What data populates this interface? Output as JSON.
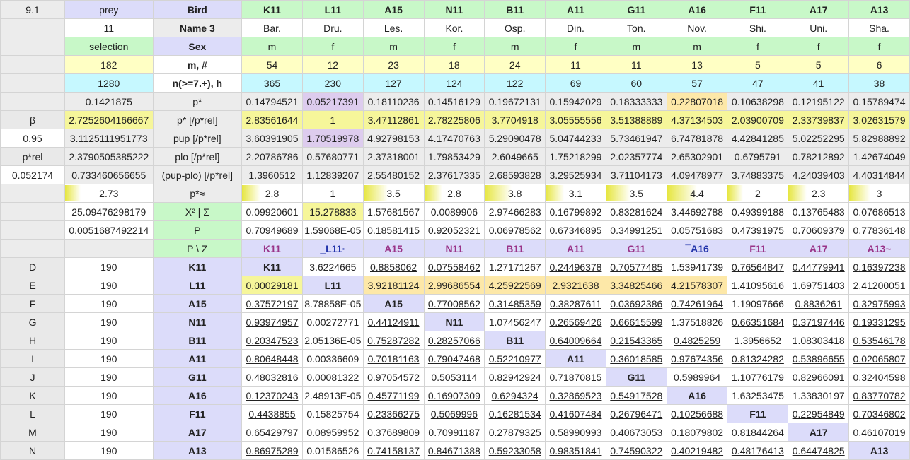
{
  "columns": [
    "K11",
    "L11",
    "A15",
    "N11",
    "B11",
    "A11",
    "G11",
    "A16",
    "F11",
    "A17",
    "A13"
  ],
  "top": {
    "a1": "9.1",
    "prey": "prey",
    "bird_label": "Bird",
    "count11": "11",
    "name3_label": "Name 3",
    "selection": "selection",
    "sex_label": "Sex",
    "m182": "182",
    "m_label": "m, #",
    "n1280": "1280",
    "n_label": "n(>=7.+), h",
    "pstar_val": "0.1421875",
    "pstar_label": "p*",
    "beta_label": "β",
    "beta_val": "2.7252604166667",
    "prel_label": "p* [/p*rel]",
    "conf": "0.95",
    "pup_val": "3.1125111951773",
    "pup_label": "pup [/p*rel]",
    "prel_row_label": "p*rel",
    "plo_val": "2.3790505385222",
    "plo_label": "plo [/p*rel]",
    "prel_value": "0.052174",
    "diff_val": "0.733460656655",
    "diff_label": "(pup-plo) [/p*rel]",
    "approx_val": "2.73",
    "approx_label": "p*≈",
    "chi_val": "25.09476298179",
    "chi_label": "X² | Σ",
    "P_val": "0.0051687492214",
    "P_label": "P",
    "pz_label": "P \\ Z"
  },
  "names": [
    "Bar.",
    "Dru.",
    "Les.",
    "Kor.",
    "Osp.",
    "Din.",
    "Ton.",
    "Nov.",
    "Shi.",
    "Uni.",
    "Sha."
  ],
  "sex": [
    "m",
    "f",
    "m",
    "f",
    "m",
    "f",
    "m",
    "m",
    "f",
    "f",
    "f"
  ],
  "m": [
    "54",
    "12",
    "23",
    "18",
    "24",
    "11",
    "11",
    "13",
    "5",
    "5",
    "6"
  ],
  "n": [
    "365",
    "230",
    "127",
    "124",
    "122",
    "69",
    "60",
    "57",
    "47",
    "41",
    "38"
  ],
  "pstar": [
    "0.14794521",
    "0.05217391",
    "0.18110236",
    "0.14516129",
    "0.19672131",
    "0.15942029",
    "0.18333333",
    "0.22807018",
    "0.10638298",
    "0.12195122",
    "0.15789474"
  ],
  "prel": [
    "2.83561644",
    "1",
    "3.47112861",
    "2.78225806",
    "3.7704918",
    "3.05555556",
    "3.51388889",
    "4.37134503",
    "2.03900709",
    "2.33739837",
    "3.02631579"
  ],
  "pup": [
    "3.60391905",
    "1.70519978",
    "4.92798153",
    "4.17470763",
    "5.29090478",
    "5.04744233",
    "5.73461947",
    "6.74781878",
    "4.42841285",
    "5.02252295",
    "5.82988892"
  ],
  "plo": [
    "2.20786786",
    "0.57680771",
    "2.37318001",
    "1.79853429",
    "2.6049665",
    "1.75218299",
    "2.02357774",
    "2.65302901",
    "0.6795791",
    "0.78212892",
    "1.42674049"
  ],
  "diff": [
    "1.3960512",
    "1.12839207",
    "2.55480152",
    "2.37617335",
    "2.68593828",
    "3.29525934",
    "3.71104173",
    "4.09478977",
    "3.74883375",
    "4.24039403",
    "4.40314844"
  ],
  "approx": [
    "2.8",
    "1",
    "3.5",
    "2.8",
    "3.8",
    "3.1",
    "3.5",
    "4.4",
    "2",
    "2.3",
    "3"
  ],
  "approx_fill": [
    0.3,
    0.0,
    0.4,
    0.3,
    0.45,
    0.3,
    0.4,
    0.5,
    0.25,
    0.3,
    0.35
  ],
  "chi": [
    "0.09920601",
    "15.278833",
    "1.57681567",
    "0.0089906",
    "2.97466283",
    "0.16799892",
    "0.83281624",
    "3.44692788",
    "0.49399188",
    "0.13765483",
    "0.07686513"
  ],
  "P": [
    "0.70949689",
    "1.59068E-05",
    "0.18581415",
    "0.92052321",
    "0.06978562",
    "0.67346895",
    "0.34991251",
    "0.05751683",
    "0.47391975",
    "0.70609379",
    "0.77836148"
  ],
  "pz_heads": [
    "K11",
    "_L11·",
    "A15",
    "N11",
    "B11",
    "A11",
    "G11",
    "¯A16",
    "F11",
    "A17",
    "A13~"
  ],
  "matrix": [
    {
      "row": "D",
      "n": "190",
      "code": "K11",
      "cells": [
        "K11",
        "3.6224665",
        "0.8858062",
        "0.07558462",
        "1.27171267",
        "0.24496378",
        "0.70577485",
        "1.53941739",
        "0.76564847",
        "0.44779941",
        "0.16397238"
      ]
    },
    {
      "row": "E",
      "n": "190",
      "code": "L11",
      "cells": [
        "0.00029181",
        "L11",
        "3.92181124",
        "2.99686554",
        "4.25922569",
        "2.9321638",
        "3.34825466",
        "4.21578307",
        "1.41095616",
        "1.69751403",
        "2.41200051"
      ]
    },
    {
      "row": "F",
      "n": "190",
      "code": "A15",
      "cells": [
        "0.37572197",
        "8.78858E-05",
        "A15",
        "0.77008562",
        "0.31485359",
        "0.38287611",
        "0.03692386",
        "0.74261964",
        "1.19097666",
        "0.8836261",
        "0.32975993"
      ]
    },
    {
      "row": "G",
      "n": "190",
      "code": "N11",
      "cells": [
        "0.93974957",
        "0.00272771",
        "0.44124911",
        "N11",
        "1.07456247",
        "0.26569426",
        "0.66615599",
        "1.37518826",
        "0.66351684",
        "0.37197446",
        "0.19331295"
      ]
    },
    {
      "row": "H",
      "n": "190",
      "code": "B11",
      "cells": [
        "0.20347523",
        "2.05136E-05",
        "0.75287282",
        "0.28257066",
        "B11",
        "0.64009664",
        "0.21543365",
        "0.4825259",
        "1.3956652",
        "1.08303418",
        "0.53546178"
      ]
    },
    {
      "row": "I",
      "n": "190",
      "code": "A11",
      "cells": [
        "0.80648448",
        "0.00336609",
        "0.70181163",
        "0.79047468",
        "0.52210977",
        "A11",
        "0.36018585",
        "0.97674356",
        "0.81324282",
        "0.53896655",
        "0.02065807"
      ]
    },
    {
      "row": "J",
      "n": "190",
      "code": "G11",
      "cells": [
        "0.48032816",
        "0.00081322",
        "0.97054572",
        "0.5053114",
        "0.82942924",
        "0.71870815",
        "G11",
        "0.5989964",
        "1.10776179",
        "0.82966091",
        "0.32404598"
      ]
    },
    {
      "row": "K",
      "n": "190",
      "code": "A16",
      "cells": [
        "0.12370243",
        "2.48913E-05",
        "0.45771199",
        "0.16907309",
        "0.6294324",
        "0.32869523",
        "0.54917528",
        "A16",
        "1.63253475",
        "1.33830197",
        "0.83770782"
      ]
    },
    {
      "row": "L",
      "n": "190",
      "code": "F11",
      "cells": [
        "0.4438855",
        "0.15825754",
        "0.23366275",
        "0.5069996",
        "0.16281534",
        "0.41607484",
        "0.26796471",
        "0.10256688",
        "F11",
        "0.22954849",
        "0.70346802"
      ]
    },
    {
      "row": "M",
      "n": "190",
      "code": "A17",
      "cells": [
        "0.65429797",
        "0.08959952",
        "0.37689809",
        "0.70991187",
        "0.27879325",
        "0.58990993",
        "0.40673053",
        "0.18079802",
        "0.81844264",
        "A17",
        "0.46107019"
      ]
    },
    {
      "row": "N",
      "n": "190",
      "code": "A13",
      "cells": [
        "0.86975289",
        "0.01586526",
        "0.74158137",
        "0.84671388",
        "0.59233058",
        "0.98351841",
        "0.74590322",
        "0.40219482",
        "0.48176413",
        "0.64474825",
        "A13"
      ]
    }
  ]
}
